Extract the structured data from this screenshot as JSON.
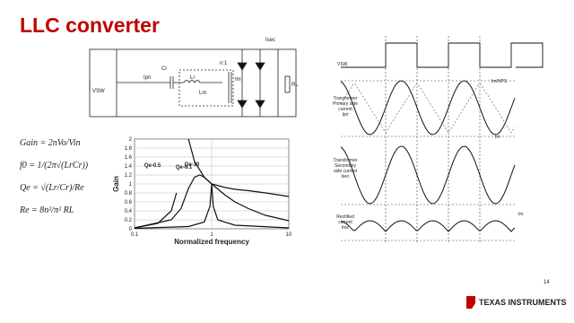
{
  "header": {
    "title": "LLC converter",
    "page_number": "14",
    "logo": "Texas Instruments"
  },
  "circuit": {
    "labels": [
      "Cr",
      "Lr",
      "Lm",
      "n:1",
      "VSW",
      "Ipri",
      "Isec",
      "RL",
      "Im"
    ]
  },
  "equations": [
    "Gain = 2nVo/Vin",
    "f0 = 1/(2π√(LrCr))",
    "Qe = √(Lr/Cr)/Re",
    "Re = 8n²/π² RL"
  ],
  "waveforms": {
    "labels": [
      "VSW",
      "Im/NPS",
      "Transformer",
      "Primary side",
      "current",
      "Ipri",
      "Im",
      "Transformer",
      "Secondary",
      "side current",
      "Isec",
      "Rectified",
      "current",
      "Irec",
      "Im"
    ]
  },
  "chart_data": {
    "type": "line",
    "x_label": "Normalized frequency",
    "y_label": "Gain",
    "log_x": true,
    "grid": true,
    "xlim": [
      0.1,
      10
    ],
    "xticks": [
      0.1,
      1,
      10
    ],
    "ylim": [
      0,
      2
    ],
    "yticks": [
      0,
      0.2,
      0.4,
      0.6,
      0.8,
      1,
      1.2,
      1.4,
      1.6,
      1.8,
      2
    ],
    "series": [
      {
        "name": "Qe-0.1",
        "color": "#111",
        "x": [
          0.1,
          0.2,
          0.3,
          0.35,
          0.4,
          0.5,
          0.6,
          0.8,
          1,
          1.5,
          2,
          3,
          5,
          10
        ],
        "values": [
          0.02,
          0.12,
          0.4,
          0.8,
          null,
          2,
          1.5,
          1.15,
          1,
          0.92,
          0.88,
          0.85,
          0.8,
          0.72
        ]
      },
      {
        "name": "Qe-0.5",
        "color": "#111",
        "x": [
          0.1,
          0.3,
          0.4,
          0.5,
          0.6,
          0.7,
          0.8,
          1,
          1.5,
          2,
          3,
          5,
          10
        ],
        "values": [
          0.02,
          0.2,
          0.45,
          0.9,
          1.15,
          1.2,
          1.15,
          1,
          0.75,
          0.6,
          0.45,
          0.3,
          0.18
        ]
      },
      {
        "name": "Qe-10",
        "color": "#111",
        "x": [
          0.1,
          0.5,
          0.8,
          0.95,
          1,
          1.05,
          1.2,
          2,
          10
        ],
        "values": [
          0.01,
          0.05,
          0.15,
          0.5,
          1,
          0.5,
          0.2,
          0.08,
          0.02
        ]
      }
    ]
  }
}
